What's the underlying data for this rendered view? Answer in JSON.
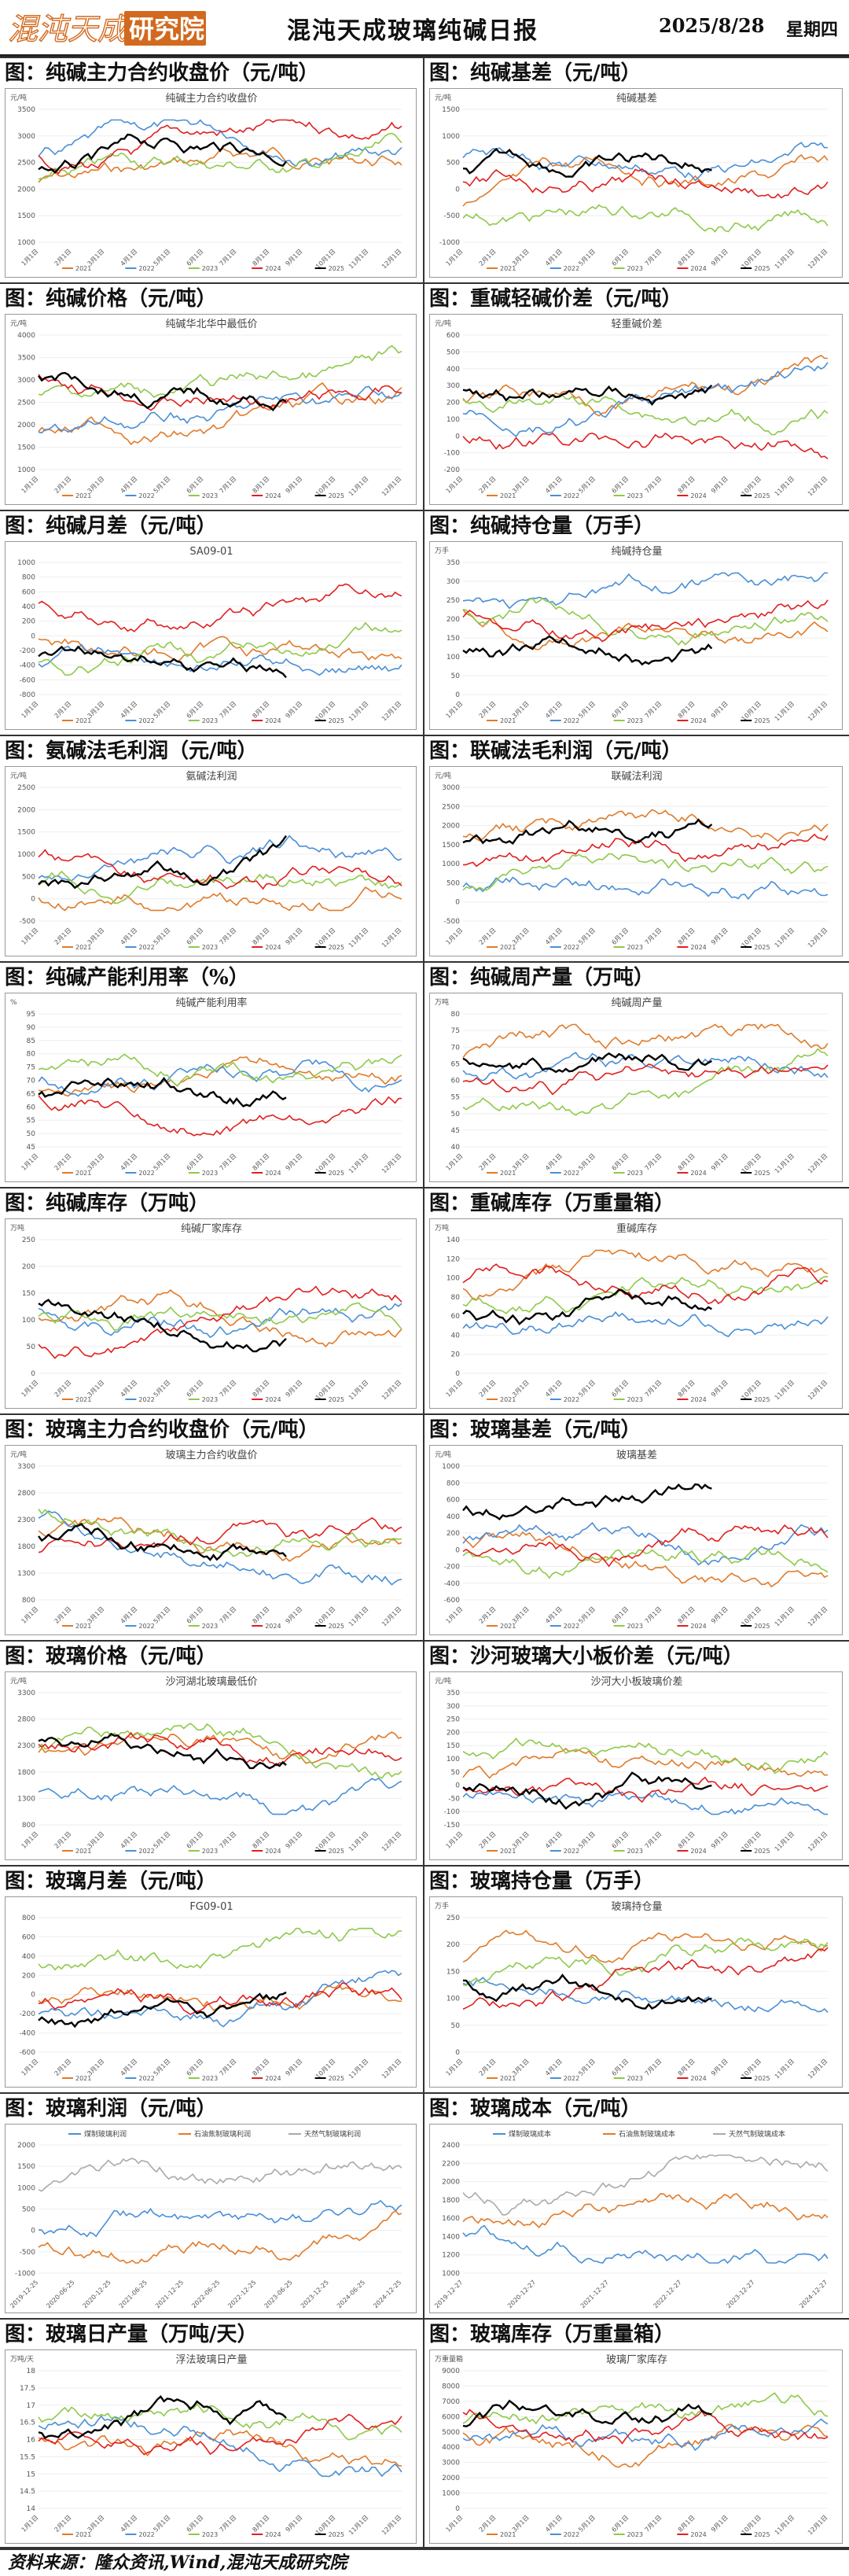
{
  "header": {
    "logo_text": "混沌天成研究院",
    "title": "混沌天成玻璃纯碱日报",
    "date": "2025/8/28",
    "weekday": "星期四"
  },
  "footer": {
    "source": "资料来源：隆众资讯,Wind,混沌天成研究院"
  },
  "legend_years": [
    "2021",
    "2022",
    "2023",
    "2024",
    "2025"
  ],
  "colors": {
    "2021": "#e07b2a",
    "2022": "#4a8fd6",
    "2023": "#8fc94a",
    "2024": "#e02020",
    "2025": "#000000"
  },
  "months": [
    "1月1日",
    "2月1日",
    "3月1日",
    "4月1日",
    "5月1日",
    "6月1日",
    "7月1日",
    "8月1日",
    "9月1日",
    "10月1日",
    "11月1日",
    "12月1日"
  ],
  "sections": [
    {
      "title": "图：纯碱主力合约收盘价（元/吨）",
      "chart": {
        "title": "纯碱主力合约收盘价",
        "unit": "元/吨",
        "ticks": [
          "3500",
          "3000",
          "2500",
          "2000",
          "1500",
          "1000"
        ]
      }
    },
    {
      "title": "图：纯碱基差（元/吨）",
      "chart": {
        "title": "纯碱基差",
        "unit": "元/吨",
        "ticks": [
          "1500",
          "1000",
          "500",
          "0",
          "-500",
          "-1000"
        ]
      }
    },
    {
      "title": "图：纯碱价格（元/吨）",
      "chart": {
        "title": "纯碱华北华中最低价",
        "unit": "元/吨",
        "ticks": [
          "4000",
          "3500",
          "3000",
          "2500",
          "2000",
          "1500",
          "1000"
        ]
      }
    },
    {
      "title": "图：重碱轻碱价差（元/吨）",
      "chart": {
        "title": "轻重碱价差",
        "unit": "元/吨",
        "ticks": [
          "600",
          "500",
          "400",
          "300",
          "200",
          "100",
          "0",
          "-100",
          "-200"
        ]
      }
    },
    {
      "title": "图：纯碱月差（元/吨）",
      "chart": {
        "title": "SA09-01",
        "unit": "",
        "ticks": [
          "1000",
          "800",
          "600",
          "400",
          "200",
          "0",
          "-200",
          "-400",
          "-600",
          "-800"
        ]
      }
    },
    {
      "title": "图：纯碱持仓量（万手）",
      "chart": {
        "title": "纯碱持仓量",
        "unit": "万手",
        "ticks": [
          "350",
          "300",
          "250",
          "200",
          "150",
          "100",
          "50",
          "0"
        ]
      }
    },
    {
      "title": "图：氨碱法毛利润（元/吨）",
      "chart": {
        "title": "氨碱法利润",
        "unit": "元/吨",
        "ticks": [
          "2500",
          "2000",
          "1500",
          "1000",
          "500",
          "0",
          "-500"
        ]
      }
    },
    {
      "title": "图：联碱法毛利润（元/吨）",
      "chart": {
        "title": "联碱法利润",
        "unit": "元/吨",
        "ticks": [
          "3000",
          "2500",
          "2000",
          "1500",
          "1000",
          "500",
          "0",
          "-500"
        ]
      }
    },
    {
      "title": "图：纯碱产能利用率（%）",
      "chart": {
        "title": "纯碱产能利用率",
        "unit": "%",
        "ticks": [
          "95",
          "90",
          "85",
          "80",
          "75",
          "70",
          "65",
          "60",
          "55",
          "50",
          "45"
        ]
      }
    },
    {
      "title": "图：纯碱周产量（万吨）",
      "chart": {
        "title": "纯碱周产量",
        "unit": "万吨",
        "ticks": [
          "80",
          "75",
          "70",
          "65",
          "60",
          "55",
          "50",
          "45",
          "40"
        ]
      }
    },
    {
      "title": "图：纯碱库存（万吨）",
      "chart": {
        "title": "纯碱厂家库存",
        "unit": "万吨",
        "ticks": [
          "250",
          "200",
          "150",
          "100",
          "50",
          "0"
        ]
      }
    },
    {
      "title": "图：重碱库存（万重量箱）",
      "chart": {
        "title": "重碱库存",
        "unit": "万吨",
        "ticks": [
          "140",
          "120",
          "100",
          "80",
          "60",
          "40",
          "20",
          "0"
        ]
      }
    },
    {
      "title": "图：玻璃主力合约收盘价（元/吨）",
      "chart": {
        "title": "玻璃主力合约收盘价",
        "unit": "元/吨",
        "ticks": [
          "3300",
          "2800",
          "2300",
          "1800",
          "1300",
          "800"
        ]
      }
    },
    {
      "title": "图：玻璃基差（元/吨）",
      "chart": {
        "title": "玻璃基差",
        "unit": "元/吨",
        "ticks": [
          "1000",
          "800",
          "600",
          "400",
          "200",
          "0",
          "-200",
          "-400",
          "-600"
        ]
      }
    },
    {
      "title": "图：玻璃价格（元/吨）",
      "chart": {
        "title": "沙河湖北玻璃最低价",
        "unit": "元/吨",
        "ticks": [
          "3300",
          "2800",
          "2300",
          "1800",
          "1300",
          "800"
        ]
      }
    },
    {
      "title": "图：沙河玻璃大小板价差（元/吨）",
      "chart": {
        "title": "沙河大小板玻璃价差",
        "unit": "元/吨",
        "ticks": [
          "350",
          "300",
          "250",
          "200",
          "150",
          "100",
          "50",
          "0",
          "-50",
          "-100",
          "-150"
        ]
      }
    },
    {
      "title": "图：玻璃月差（元/吨）",
      "chart": {
        "title": "FG09-01",
        "unit": "",
        "ticks": [
          "800",
          "600",
          "400",
          "200",
          "0",
          "-200",
          "-400",
          "-600"
        ]
      }
    },
    {
      "title": "图：玻璃持仓量（万手）",
      "chart": {
        "title": "玻璃持仓量",
        "unit": "万手",
        "ticks": [
          "250",
          "200",
          "150",
          "100",
          "50",
          "0"
        ]
      }
    },
    {
      "title": "图：玻璃利润（元/吨）",
      "chart": {
        "title": "",
        "unit": "",
        "ticks": [
          "2000",
          "1500",
          "1000",
          "500",
          "0",
          "-500",
          "-1000"
        ],
        "legend": [
          "煤制玻璃利润",
          "石油焦制玻璃利润",
          "天然气制玻璃利润"
        ],
        "xdates": [
          "2019-12-25",
          "2020-06-25",
          "2020-12-25",
          "2021-06-25",
          "2021-12-25",
          "2022-06-25",
          "2022-12-25",
          "2023-06-25",
          "2023-12-25",
          "2024-06-25",
          "2024-12-25"
        ]
      }
    },
    {
      "title": "图：玻璃成本（元/吨）",
      "chart": {
        "title": "",
        "unit": "",
        "ticks": [
          "2400",
          "2200",
          "2000",
          "1800",
          "1600",
          "1400",
          "1200",
          "1000"
        ],
        "legend": [
          "煤制玻璃成本",
          "石油焦制玻璃成本",
          "天然气制玻璃成本"
        ],
        "xdates": [
          "2019-12-27",
          "2020-12-27",
          "2021-12-27",
          "2022-12-27",
          "2023-12-27",
          "2024-12-27"
        ]
      }
    },
    {
      "title": "图：玻璃日产量（万吨/天）",
      "chart": {
        "title": "浮法玻璃日产量",
        "unit": "万吨/天",
        "ticks": [
          "18",
          "17.5",
          "17",
          "16.5",
          "16",
          "15.5",
          "15",
          "14.5",
          "14"
        ]
      }
    },
    {
      "title": "图：玻璃库存（万重量箱）",
      "chart": {
        "title": "玻璃厂家库存",
        "unit": "万重量箱",
        "ticks": [
          "9000",
          "8000",
          "7000",
          "6000",
          "5000",
          "4000",
          "3000",
          "2000",
          "1000",
          "0"
        ]
      }
    }
  ]
}
